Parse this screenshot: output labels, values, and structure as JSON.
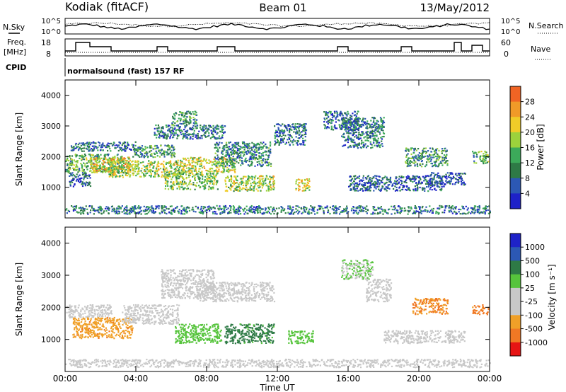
{
  "header": {
    "station": "Kodiak (fitACF)",
    "beam": "Beam 01",
    "date": "13/May/2012"
  },
  "top_strips": {
    "noise_left_label": "N.Sky",
    "noise_right_label": "N.Search",
    "noise_left_ticks": [
      "10^5",
      "10^0"
    ],
    "noise_right_ticks": [
      "10^5",
      "10^0"
    ],
    "freq_label_1": "Freq.",
    "freq_label_2": "[MHz]",
    "freq_ticks": [
      "18",
      "8"
    ],
    "nave_label": "Nave",
    "nave_ticks": [
      "60",
      "0"
    ],
    "cpid_label": "CPID",
    "cpid_text": "normalsound (fast) 157 RF"
  },
  "colors": {
    "power": [
      "#1e22c8",
      "#2c58b4",
      "#2e7a46",
      "#3caa5a",
      "#9cd23c",
      "#f0cc28",
      "#f09a28",
      "#f06424",
      "#e61e1e"
    ],
    "velocity": [
      "#1e22c8",
      "#2c58b4",
      "#2e7a46",
      "#56c43c",
      "#c8c8c8",
      "#c8c8c8",
      "#f0a028",
      "#f07824",
      "#f03c1e",
      "#e61414"
    ]
  },
  "chart_data": [
    {
      "type": "heatmap",
      "panel": "power",
      "xlabel": "",
      "ylabel": "Slant Range [km]",
      "xlim": [
        "00:00",
        "24:00"
      ],
      "ylim": [
        0,
        4500
      ],
      "yticks": [
        1000,
        2000,
        3000,
        4000
      ],
      "colorbar_label": "Power [dB]",
      "colorbar_ticks": [
        4,
        8,
        12,
        16,
        20,
        24,
        28
      ],
      "colorbar_range": [
        0,
        32
      ],
      "scatter_bands": [
        {
          "t0": 0.0,
          "t1": 3.3,
          "r0": 1500,
          "r1": 2100,
          "v": 14
        },
        {
          "t0": 0.2,
          "t1": 1.4,
          "r0": 1050,
          "r1": 1500,
          "v": 6
        },
        {
          "t0": 0.3,
          "t1": 4.0,
          "r0": 2200,
          "r1": 2500,
          "v": 8
        },
        {
          "t0": 1.4,
          "t1": 3.6,
          "r0": 1500,
          "r1": 2000,
          "v": 22
        },
        {
          "t0": 2.4,
          "t1": 6.6,
          "r0": 1350,
          "r1": 1900,
          "v": 18
        },
        {
          "t0": 3.8,
          "t1": 6.2,
          "r0": 2000,
          "r1": 2400,
          "v": 12
        },
        {
          "t0": 5.0,
          "t1": 9.0,
          "r0": 2600,
          "r1": 3050,
          "v": 9
        },
        {
          "t0": 6.0,
          "t1": 7.4,
          "r0": 3050,
          "r1": 3500,
          "v": 12
        },
        {
          "t0": 5.6,
          "t1": 8.6,
          "r0": 950,
          "r1": 1500,
          "v": 16
        },
        {
          "t0": 6.6,
          "t1": 9.6,
          "r0": 1500,
          "r1": 2000,
          "v": 20
        },
        {
          "t0": 8.4,
          "t1": 11.6,
          "r0": 1700,
          "r1": 2500,
          "v": 10
        },
        {
          "t0": 9.0,
          "t1": 11.8,
          "r0": 900,
          "r1": 1400,
          "v": 18
        },
        {
          "t0": 11.8,
          "t1": 13.6,
          "r0": 2400,
          "r1": 3100,
          "v": 8
        },
        {
          "t0": 13.0,
          "t1": 13.8,
          "r0": 900,
          "r1": 1300,
          "v": 22
        },
        {
          "t0": 14.6,
          "t1": 16.6,
          "r0": 2900,
          "r1": 3500,
          "v": 7
        },
        {
          "t0": 15.6,
          "t1": 18.0,
          "r0": 2300,
          "r1": 3300,
          "v": 9
        },
        {
          "t0": 16.0,
          "t1": 21.4,
          "r0": 900,
          "r1": 1400,
          "v": 6
        },
        {
          "t0": 19.2,
          "t1": 21.6,
          "r0": 1700,
          "r1": 2300,
          "v": 11
        },
        {
          "t0": 20.6,
          "t1": 22.6,
          "r0": 1100,
          "r1": 1500,
          "v": 5
        },
        {
          "t0": 23.0,
          "t1": 23.9,
          "r0": 1800,
          "r1": 2200,
          "v": 14
        },
        {
          "t0": 0.0,
          "t1": 24.0,
          "r0": 150,
          "r1": 420,
          "v": 9
        }
      ]
    },
    {
      "type": "heatmap",
      "panel": "velocity",
      "xlabel": "Time UT",
      "ylabel": "Slant Range [km]",
      "xticks": [
        "00:00",
        "04:00",
        "08:00",
        "12:00",
        "16:00",
        "20:00",
        "00:00"
      ],
      "xlim": [
        "00:00",
        "24:00"
      ],
      "ylim": [
        0,
        4500
      ],
      "yticks": [
        1000,
        2000,
        3000,
        4000
      ],
      "colorbar_label": "Velocity [m s⁻¹]",
      "colorbar_ticks": [
        1000,
        500,
        100,
        25,
        -25,
        -100,
        -500,
        -1000
      ],
      "scatter_bands": [
        {
          "t0": 0.0,
          "t1": 2.6,
          "r0": 1700,
          "r1": 2100,
          "v": 0
        },
        {
          "t0": 0.4,
          "t1": 3.8,
          "r0": 1050,
          "r1": 1700,
          "v": -150
        },
        {
          "t0": 3.2,
          "t1": 6.4,
          "r0": 1500,
          "r1": 2100,
          "v": 0
        },
        {
          "t0": 5.4,
          "t1": 8.4,
          "r0": 2300,
          "r1": 3200,
          "v": 0
        },
        {
          "t0": 6.2,
          "t1": 8.8,
          "r0": 900,
          "r1": 1500,
          "v": 150
        },
        {
          "t0": 7.4,
          "t1": 11.8,
          "r0": 2200,
          "r1": 2800,
          "v": 0
        },
        {
          "t0": 9.0,
          "t1": 11.8,
          "r0": 900,
          "r1": 1500,
          "v": 300
        },
        {
          "t0": 12.6,
          "t1": 14.0,
          "r0": 900,
          "r1": 1300,
          "v": 120
        },
        {
          "t0": 15.6,
          "t1": 17.4,
          "r0": 2900,
          "r1": 3500,
          "v": 60
        },
        {
          "t0": 17.0,
          "t1": 18.4,
          "r0": 2200,
          "r1": 2900,
          "v": 0
        },
        {
          "t0": 19.6,
          "t1": 21.6,
          "r0": 1800,
          "r1": 2300,
          "v": -200
        },
        {
          "t0": 18.0,
          "t1": 22.6,
          "r0": 900,
          "r1": 1300,
          "v": 0
        },
        {
          "t0": 23.0,
          "t1": 23.9,
          "r0": 1800,
          "r1": 2100,
          "v": -250
        },
        {
          "t0": 0.0,
          "t1": 24.0,
          "r0": 150,
          "r1": 400,
          "v": 0
        }
      ]
    }
  ]
}
